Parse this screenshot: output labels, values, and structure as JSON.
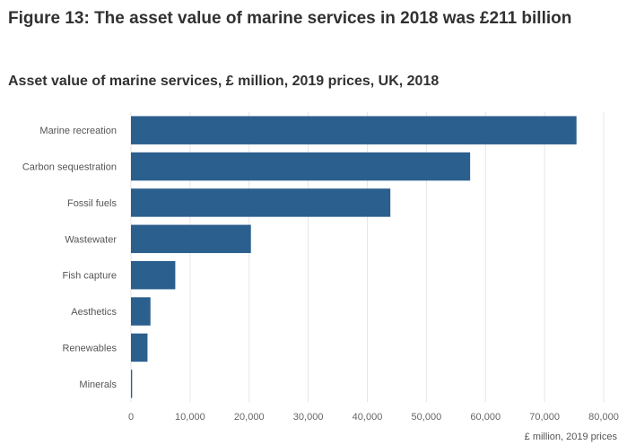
{
  "figure_title": "Figure 13: The asset value of marine services in 2018 was £211 billion",
  "chart_data": {
    "type": "bar",
    "orientation": "horizontal",
    "title": "Asset value of marine services, £ million, 2019 prices, UK, 2018",
    "xlabel": "£ million, 2019 prices",
    "ylabel": "",
    "categories": [
      "Marine recreation",
      "Carbon sequestration",
      "Fossil fuels",
      "Wastewater",
      "Fish capture",
      "Aesthetics",
      "Renewables",
      "Minerals"
    ],
    "values": [
      75400,
      57400,
      43900,
      20300,
      7500,
      3300,
      2800,
      200
    ],
    "xlim": [
      0,
      80000
    ],
    "xticks": [
      0,
      10000,
      20000,
      30000,
      40000,
      50000,
      60000,
      70000,
      80000
    ],
    "xtick_labels": [
      "0",
      "10,000",
      "20,000",
      "30,000",
      "40,000",
      "50,000",
      "60,000",
      "70,000",
      "80,000"
    ],
    "grid": "vertical",
    "bar_color": "#2b5f8e",
    "grid_color": "#e6e6e6"
  }
}
